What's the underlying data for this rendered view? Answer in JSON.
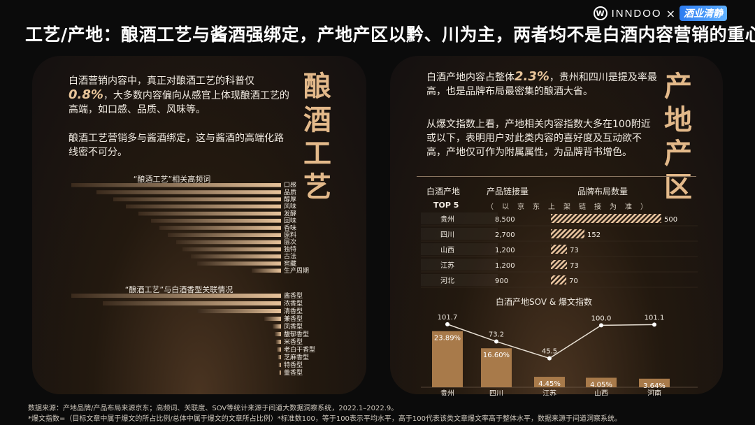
{
  "title": "工艺/产地：酿酒工艺与酱酒强绑定，产地产区以黔、川为主，两者均不是白酒内容营销的重心",
  "brand": {
    "logo_letter": "W",
    "name": "INNDOO",
    "cross": "×",
    "partner": "酒业清静"
  },
  "left_panel": {
    "vertical_title": [
      "酿",
      "酒",
      "工",
      "艺"
    ],
    "para1_before": "白酒营销内容中，真正对酿酒工艺的科普仅",
    "para1_highlight": "0.8%",
    "para1_after": "，大多数内容偏向从感官上体现酿酒工艺的高端，如口感、品质、风味等。",
    "para2": "酿酒工艺营销多与酱酒绑定，这与酱酒的高端化路线密不可分。"
  },
  "right_panel": {
    "vertical_title": [
      "产",
      "地",
      "产",
      "区"
    ],
    "para1_before": "白酒产地内容占整体",
    "para1_highlight": "2.3%",
    "para1_after": "，贵州和四川是提及率最高，也是品牌布局最密集的酿酒大省。",
    "para2": "从爆文指数上看，产地相关内容指数大多在100附近或以下，表明用户对此类内容的喜好度及互动欲不高，产地仅可作为附属属性，为品牌背书增色。"
  },
  "footer": {
    "line1": "数据来源：产地品牌/产品布局来源京东；高频词、关联度、SOV等统计来源于间道大数据洞察系统，2022.1–2022.9。",
    "line2": "*爆文指数=（目标文章中属于爆文的所占比例/总体中属于爆文的文章所占比例）*标准数100，等于100表示平均水平，高于100代表该类文章爆文率高于整体水平，数据来源于间道洞察系统。"
  },
  "table": {
    "headers": [
      "白酒产地",
      "产品链接量",
      "品牌布局数量"
    ],
    "subheader_left": "TOP 5",
    "subheader_note": "（以京东上架链接为准）"
  },
  "chart_data": [
    {
      "type": "bar",
      "title": "“酿酒工艺”相关高频词",
      "categories": [
        "口感",
        "品质",
        "醇厚",
        "风味",
        "发酵",
        "回味",
        "香味",
        "原料",
        "层次",
        "独特",
        "古法",
        "窖藏",
        "生产周期"
      ],
      "values": [
        100,
        88,
        80,
        74,
        68,
        62,
        58,
        54,
        50,
        47,
        43,
        40,
        14
      ],
      "xlabel": "",
      "ylabel": ""
    },
    {
      "type": "bar",
      "title": "“酿酒工艺”与白酒香型关联情况",
      "categories": [
        "酱香型",
        "浓香型",
        "清香型",
        "兼香型",
        "凤香型",
        "馥郁香型",
        "米香型",
        "老白干香型",
        "芝麻香型",
        "特香型",
        "董香型"
      ],
      "values": [
        100,
        85,
        40,
        8,
        4,
        3,
        2.5,
        2,
        1.5,
        1.2,
        1
      ],
      "xlabel": "",
      "ylabel": ""
    },
    {
      "type": "table",
      "title": "",
      "columns": [
        "白酒产地",
        "产品链接量",
        "品牌布局数量"
      ],
      "rows": [
        {
          "region": "贵州",
          "links": "8,500",
          "brands": 500
        },
        {
          "region": "四川",
          "links": "2,700",
          "brands": 152
        },
        {
          "region": "山西",
          "links": "1,200",
          "brands": 73
        },
        {
          "region": "江苏",
          "links": "1,200",
          "brands": 73
        },
        {
          "region": "河北",
          "links": "900",
          "brands": 70
        }
      ]
    },
    {
      "type": "bar",
      "title": "白酒产地SOV & 爆文指数",
      "categories": [
        "贵州",
        "四川",
        "江苏",
        "山西",
        "河南"
      ],
      "series": [
        {
          "name": "SOV",
          "values": [
            23.89,
            16.6,
            4.45,
            4.05,
            3.64
          ],
          "labels": [
            "23.89%",
            "16.60%",
            "4.45%",
            "4.05%",
            "3.64%"
          ]
        },
        {
          "name": "爆文指数",
          "type": "line",
          "values": [
            101.7,
            73.2,
            45.5,
            100.0,
            101.1
          ],
          "labels": [
            "101.7",
            "73.2",
            "45.5",
            "100.0",
            "101.1"
          ]
        }
      ],
      "xlabel": "",
      "ylabel": ""
    }
  ],
  "colors": {
    "accent": "#e3b98a",
    "bar": "#a87a4a",
    "bar_light": "#d9b48a",
    "hatch": "#e9c5a0"
  }
}
